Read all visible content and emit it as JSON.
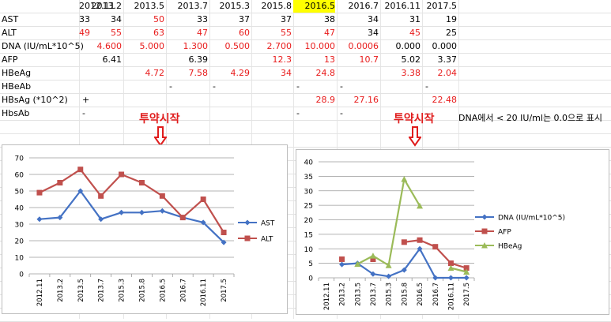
{
  "sheet": {
    "columns": [
      "2012.11",
      "2013.2",
      "2013.5",
      "2013.7",
      "2015.3",
      "2015.8",
      "2016.5",
      "2016.7",
      "2016.11",
      "2017.5"
    ],
    "highlight_col": 6,
    "rows": [
      {
        "label": "AST",
        "cells": [
          {
            "v": "33"
          },
          {
            "v": "34"
          },
          {
            "v": "50",
            "red": true
          },
          {
            "v": "33"
          },
          {
            "v": "37"
          },
          {
            "v": "37"
          },
          {
            "v": "38"
          },
          {
            "v": "34"
          },
          {
            "v": "31"
          },
          {
            "v": "19"
          }
        ]
      },
      {
        "label": "ALT",
        "cells": [
          {
            "v": "49",
            "red": true
          },
          {
            "v": "55",
            "red": true
          },
          {
            "v": "63",
            "red": true
          },
          {
            "v": "47",
            "red": true
          },
          {
            "v": "60",
            "red": true
          },
          {
            "v": "55",
            "red": true
          },
          {
            "v": "47",
            "red": true
          },
          {
            "v": "34"
          },
          {
            "v": "45",
            "red": true
          },
          {
            "v": "25"
          }
        ]
      },
      {
        "label": "DNA (IU/mL*10^5)",
        "cells": [
          {
            "v": ""
          },
          {
            "v": "4.600",
            "red": true
          },
          {
            "v": "5.000",
            "red": true
          },
          {
            "v": "1.300",
            "red": true
          },
          {
            "v": "0.500",
            "red": true
          },
          {
            "v": "2.700",
            "red": true
          },
          {
            "v": "10.000",
            "red": true
          },
          {
            "v": "0.0006",
            "red": true
          },
          {
            "v": "0.000"
          },
          {
            "v": "0.000"
          }
        ]
      },
      {
        "label": "AFP",
        "cells": [
          {
            "v": ""
          },
          {
            "v": "6.41"
          },
          {
            "v": ""
          },
          {
            "v": "6.39"
          },
          {
            "v": ""
          },
          {
            "v": "12.3",
            "red": true
          },
          {
            "v": "13",
            "red": true
          },
          {
            "v": "10.7",
            "red": true
          },
          {
            "v": "5.02"
          },
          {
            "v": "3.37"
          }
        ]
      },
      {
        "label": "HBeAg",
        "cells": [
          {
            "v": ""
          },
          {
            "v": ""
          },
          {
            "v": "4.72",
            "red": true
          },
          {
            "v": "7.58",
            "red": true
          },
          {
            "v": "4.29",
            "red": true
          },
          {
            "v": "34",
            "red": true
          },
          {
            "v": "24.8",
            "red": true
          },
          {
            "v": ""
          },
          {
            "v": "3.38",
            "red": true
          },
          {
            "v": "2.04",
            "red": true
          }
        ]
      },
      {
        "label": "HBeAb",
        "cells": [
          {
            "v": ""
          },
          {
            "v": ""
          },
          {
            "v": ""
          },
          {
            "v": "-",
            "left": true
          },
          {
            "v": "-",
            "left": true
          },
          {
            "v": ""
          },
          {
            "v": "-",
            "left": true
          },
          {
            "v": "-",
            "left": true
          },
          {
            "v": ""
          },
          {
            "v": "-",
            "left": true
          }
        ]
      },
      {
        "label": "HBsAg (*10^2)",
        "cells": [
          {
            "v": ""
          },
          {
            "v": "+",
            "left": true
          },
          {
            "v": ""
          },
          {
            "v": ""
          },
          {
            "v": ""
          },
          {
            "v": ""
          },
          {
            "v": "28.9",
            "red": true
          },
          {
            "v": "27.16",
            "red": true
          },
          {
            "v": ""
          },
          {
            "v": "22.48",
            "red": true
          }
        ]
      },
      {
        "label": "HbsAb",
        "cells": [
          {
            "v": ""
          },
          {
            "v": "-",
            "left": true
          },
          {
            "v": ""
          },
          {
            "v": ""
          },
          {
            "v": ""
          },
          {
            "v": ""
          },
          {
            "v": "-",
            "left": true
          },
          {
            "v": "-",
            "left": true
          },
          {
            "v": ""
          },
          {
            "v": "-",
            "left": true
          }
        ]
      }
    ]
  },
  "annotations": {
    "start_label": "투약시작",
    "note": "DNA에서 < 20 IU/ml는 0.0으로 표시"
  },
  "chart_data": [
    {
      "type": "line",
      "categories": [
        "2012.11",
        "2013.2",
        "2013.5",
        "2013.7",
        "2015.3",
        "2015.8",
        "2016.5",
        "2016.7",
        "2016.11",
        "2017.5"
      ],
      "ylim": [
        0,
        70
      ],
      "yticks": [
        0,
        10,
        20,
        30,
        40,
        50,
        60,
        70
      ],
      "grid": true,
      "legend": "right",
      "series": [
        {
          "name": "AST",
          "color": "#4472c4",
          "marker": "diamond",
          "values": [
            33,
            34,
            50,
            33,
            37,
            37,
            38,
            34,
            31,
            19
          ]
        },
        {
          "name": "ALT",
          "color": "#c0504d",
          "marker": "square",
          "values": [
            49,
            55,
            63,
            47,
            60,
            55,
            47,
            34,
            45,
            25
          ]
        }
      ]
    },
    {
      "type": "line",
      "categories": [
        "2012.11",
        "2013.2",
        "2013.5",
        "2013.7",
        "2015.3",
        "2015.8",
        "2016.5",
        "2016.7",
        "2016.11",
        "2017.5"
      ],
      "ylim": [
        0,
        40
      ],
      "yticks": [
        0,
        5,
        10,
        15,
        20,
        25,
        30,
        35,
        40
      ],
      "grid": true,
      "legend": "right",
      "series": [
        {
          "name": "DNA (IU/mL*10^5)",
          "color": "#4472c4",
          "marker": "diamond",
          "values": [
            null,
            4.6,
            5.0,
            1.3,
            0.5,
            2.7,
            10.0,
            0.0006,
            0,
            0
          ]
        },
        {
          "name": "AFP",
          "color": "#c0504d",
          "marker": "square",
          "values": [
            null,
            6.41,
            null,
            6.39,
            null,
            12.3,
            13,
            10.7,
            5.02,
            3.37
          ]
        },
        {
          "name": "HBeAg",
          "color": "#9bbb59",
          "marker": "triangle",
          "values": [
            null,
            null,
            4.72,
            7.58,
            4.29,
            34,
            24.8,
            null,
            3.38,
            2.04
          ]
        }
      ]
    }
  ]
}
